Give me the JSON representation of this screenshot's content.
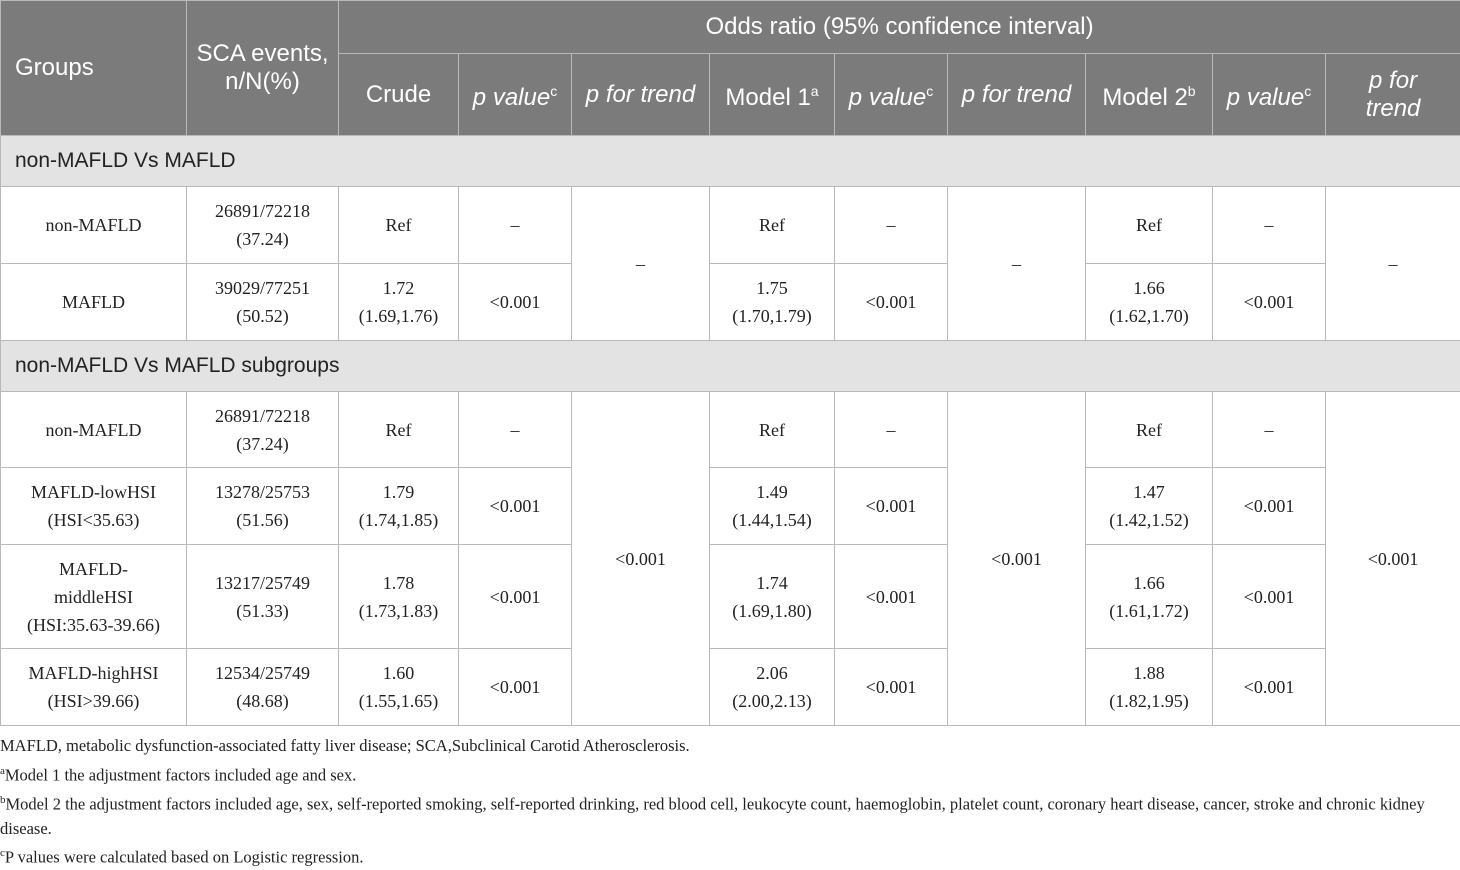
{
  "header": {
    "groups": "Groups",
    "sca_line1": "SCA events,",
    "sca_line2": "n/N(%)",
    "odds_ratio": "Odds ratio (95% confidence interval)",
    "crude": "Crude",
    "p_value": "p value",
    "p_value_sup": "c",
    "p_for_trend": "p for trend",
    "p_for": "p for",
    "trend": "trend",
    "model1": "Model 1",
    "model1_sup": "a",
    "model2": "Model 2",
    "model2_sup": "b"
  },
  "section1": {
    "title": "non-MAFLD Vs MAFLD",
    "trend_crude": "–",
    "trend_m1": "–",
    "trend_m2": "–",
    "rows": [
      {
        "g1": "non-MAFLD",
        "s1": "26891/72218",
        "s2": "(37.24)",
        "c1": "Ref",
        "c2": "",
        "cp": "–",
        "m1a": "Ref",
        "m1b": "",
        "m1p": "–",
        "m2a": "Ref",
        "m2b": "",
        "m2p": "–"
      },
      {
        "g1": "MAFLD",
        "s1": "39029/77251",
        "s2": "(50.52)",
        "c1": "1.72",
        "c2": "(1.69,1.76)",
        "cp": "<0.001",
        "m1a": "1.75",
        "m1b": "(1.70,1.79)",
        "m1p": "<0.001",
        "m2a": "1.66",
        "m2b": "(1.62,1.70)",
        "m2p": "<0.001"
      }
    ]
  },
  "section2": {
    "title": "non-MAFLD Vs MAFLD subgroups",
    "trend_crude": "<0.001",
    "trend_m1": "<0.001",
    "trend_m2": "<0.001",
    "rows": [
      {
        "g1": "non-MAFLD",
        "g2": "",
        "g3": "",
        "s1": "26891/72218",
        "s2": "(37.24)",
        "c1": "Ref",
        "c2": "",
        "cp": "–",
        "m1a": "Ref",
        "m1b": "",
        "m1p": "–",
        "m2a": "Ref",
        "m2b": "",
        "m2p": "–"
      },
      {
        "g1": "MAFLD-lowHSI",
        "g2": "(HSI<35.63)",
        "g3": "",
        "s1": "13278/25753",
        "s2": "(51.56)",
        "c1": "1.79",
        "c2": "(1.74,1.85)",
        "cp": "<0.001",
        "m1a": "1.49",
        "m1b": "(1.44,1.54)",
        "m1p": "<0.001",
        "m2a": "1.47",
        "m2b": "(1.42,1.52)",
        "m2p": "<0.001"
      },
      {
        "g1": "MAFLD-",
        "g2": "middleHSI",
        "g3": "(HSI:35.63-39.66)",
        "s1": "13217/25749",
        "s2": "(51.33)",
        "c1": "1.78",
        "c2": "(1.73,1.83)",
        "cp": "<0.001",
        "m1a": "1.74",
        "m1b": "(1.69,1.80)",
        "m1p": "<0.001",
        "m2a": "1.66",
        "m2b": "(1.61,1.72)",
        "m2p": "<0.001"
      },
      {
        "g1": "MAFLD-highHSI",
        "g2": "(HSI>39.66)",
        "g3": "",
        "s1": "12534/25749",
        "s2": "(48.68)",
        "c1": "1.60",
        "c2": "(1.55,1.65)",
        "cp": "<0.001",
        "m1a": "2.06",
        "m1b": "(2.00,2.13)",
        "m1p": "<0.001",
        "m2a": "1.88",
        "m2b": "(1.82,1.95)",
        "m2p": "<0.001"
      }
    ]
  },
  "notes": {
    "abbr": "MAFLD, metabolic dysfunction-associated fatty liver disease; SCA,Subclinical Carotid Atherosclerosis.",
    "a_sup": "a",
    "a_text": "Model 1 the adjustment factors included age and sex.",
    "b_sup": "b",
    "b_text": "Model 2 the adjustment factors included age, sex, self-reported smoking, self-reported drinking, red blood cell, leukocyte count, haemoglobin, platelet count, coronary heart disease, cancer, stroke and chronic kidney disease.",
    "c_sup": "c",
    "c_text": "P values were calculated based on Logistic regression."
  }
}
